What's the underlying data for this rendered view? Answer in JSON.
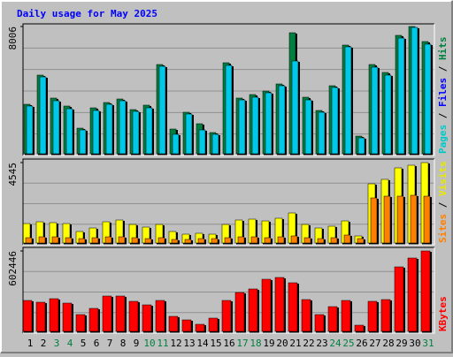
{
  "chart_data": [
    {
      "type": "bar",
      "title": "Daily usage for May 2025",
      "title_color": "#0000ff",
      "ylim": [
        0,
        8006
      ],
      "yticks": [
        8006
      ],
      "y_label_parts": [
        {
          "text": "Pages",
          "color": "#00c8c8"
        },
        {
          "text": " / ",
          "color": "#000000"
        },
        {
          "text": "Files",
          "color": "#0000ff"
        },
        {
          "text": " / ",
          "color": "#000000"
        },
        {
          "text": "Hits",
          "color": "#008040"
        }
      ],
      "series": [
        {
          "name": "Hits",
          "color": "#008040",
          "values": [
            3147,
            4969,
            3534,
            3037,
            1656,
            2926,
            3258,
            3479,
            2816,
            3092,
            5632,
            1601,
            2650,
            1932,
            1380,
            5742,
            3534,
            3755,
            3975,
            4417,
            7618,
            3589,
            2761,
            4307,
            6847,
            1159,
            5632,
            5135,
            7454,
            8006,
            7067
          ]
        },
        {
          "name": "Pages",
          "color": "#00c8e8",
          "values": [
            3037,
            4859,
            3368,
            2871,
            1546,
            2761,
            3147,
            3368,
            2705,
            2926,
            5521,
            1270,
            2540,
            1546,
            1270,
            5577,
            3423,
            3589,
            3865,
            4307,
            5853,
            3423,
            2650,
            4196,
            6737,
            1049,
            5466,
            4969,
            7288,
            7950,
            6902
          ]
        }
      ]
    },
    {
      "type": "bar",
      "ylim": [
        0,
        4545
      ],
      "yticks": [
        4545
      ],
      "y_label_parts": [
        {
          "text": "Sites",
          "color": "#ff8000"
        },
        {
          "text": " / ",
          "color": "#000000"
        },
        {
          "text": "Visits",
          "color": "#e8e800"
        }
      ],
      "series": [
        {
          "name": "Visits",
          "color": "#ffff00",
          "values": [
            1136,
            1235,
            1186,
            1136,
            692,
            889,
            1235,
            1334,
            1087,
            939,
            1087,
            692,
            543,
            593,
            543,
            1087,
            1334,
            1383,
            1284,
            1433,
            1729,
            1087,
            889,
            988,
            1284,
            445,
            3359,
            3607,
            4249,
            4397,
            4545
          ]
        },
        {
          "name": "Sites",
          "color": "#ff8000",
          "values": [
            346,
            395,
            395,
            346,
            296,
            346,
            395,
            395,
            346,
            296,
            346,
            247,
            247,
            296,
            296,
            346,
            395,
            395,
            346,
            395,
            445,
            346,
            296,
            346,
            494,
            296,
            2569,
            2668,
            2668,
            2717,
            2668
          ]
        }
      ]
    },
    {
      "type": "bar",
      "ylim": [
        0,
        602446
      ],
      "yticks": [
        602446
      ],
      "y_label_parts": [
        {
          "text": "KBytes",
          "color": "#ff0000"
        }
      ],
      "categories": [
        "1",
        "2",
        "3",
        "4",
        "5",
        "6",
        "7",
        "8",
        "9",
        "10",
        "11",
        "12",
        "13",
        "14",
        "15",
        "16",
        "17",
        "18",
        "19",
        "20",
        "21",
        "22",
        "23",
        "24",
        "25",
        "26",
        "27",
        "28",
        "29",
        "30",
        "31"
      ],
      "category_colors": [
        "#000000",
        "#000000",
        "#008040",
        "#008040",
        "#000000",
        "#000000",
        "#000000",
        "#000000",
        "#000000",
        "#008040",
        "#008040",
        "#000000",
        "#000000",
        "#000000",
        "#000000",
        "#000000",
        "#008040",
        "#008040",
        "#000000",
        "#000000",
        "#000000",
        "#000000",
        "#000000",
        "#008040",
        "#008040",
        "#000000",
        "#000000",
        "#000000",
        "#000000",
        "#000000",
        "#008040"
      ],
      "series": [
        {
          "name": "KBytes",
          "color": "#ff0000",
          "values": [
            235739,
            222642,
            248835,
            216094,
            130966,
            176804,
            268480,
            268480,
            229191,
            202997,
            235739,
            117869,
            91676,
            58935,
            104773,
            235739,
            294674,
            320867,
            392898,
            406015,
            366705,
            242287,
            130966,
            189901,
            235739,
            52386,
            229191,
            242287,
            484574,
            550057,
            602446
          ]
        }
      ]
    }
  ]
}
